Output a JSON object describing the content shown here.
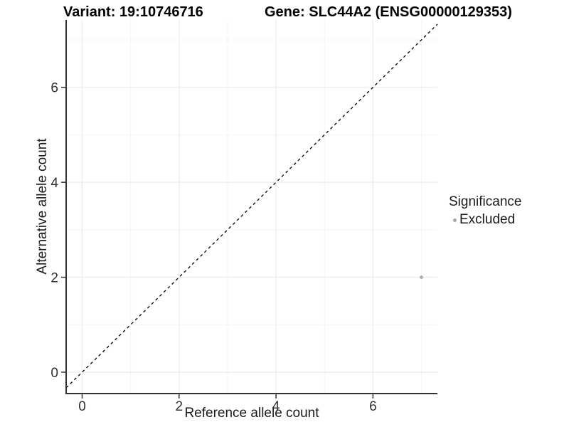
{
  "header": {
    "variant_title": "Variant: 19:10746716",
    "gene_title": "Gene: SLC44A2 (ENSG00000129353)"
  },
  "axes": {
    "x_label": "Reference allele count",
    "y_label": "Alternative allele count"
  },
  "legend": {
    "title": "Significance",
    "items": [
      {
        "label": "Excluded",
        "color": "#aaaaaa"
      }
    ]
  },
  "colors": {
    "background": "#ffffff",
    "axis_line": "#333333",
    "tick_mark": "#333333",
    "tick_label": "#303030",
    "grid_major": "#ebebeb",
    "grid_minor": "#f4f4f4",
    "reference_line": "#000000",
    "point": "#b0b0b0"
  },
  "chart_data": {
    "type": "scatter",
    "title": "Variant: 19:10746716 | Gene: SLC44A2 (ENSG00000129353)",
    "xlabel": "Reference allele count",
    "ylabel": "Alternative allele count",
    "xlim": [
      -0.33,
      7.33
    ],
    "ylim": [
      -0.45,
      7.42
    ],
    "x_ticks": [
      0,
      2,
      4,
      6
    ],
    "y_ticks": [
      0,
      2,
      4,
      6
    ],
    "x_minor_ticks": [
      1,
      3,
      5,
      7
    ],
    "y_minor_ticks": [
      1,
      3,
      5,
      7
    ],
    "grid": true,
    "legend_position": "right",
    "series": [
      {
        "name": "Excluded",
        "color": "#b0b0b0",
        "points": [
          {
            "x": 7,
            "y": 2
          }
        ]
      }
    ],
    "reference_line": {
      "style": "dashed",
      "slope": 1,
      "intercept": 0
    }
  }
}
